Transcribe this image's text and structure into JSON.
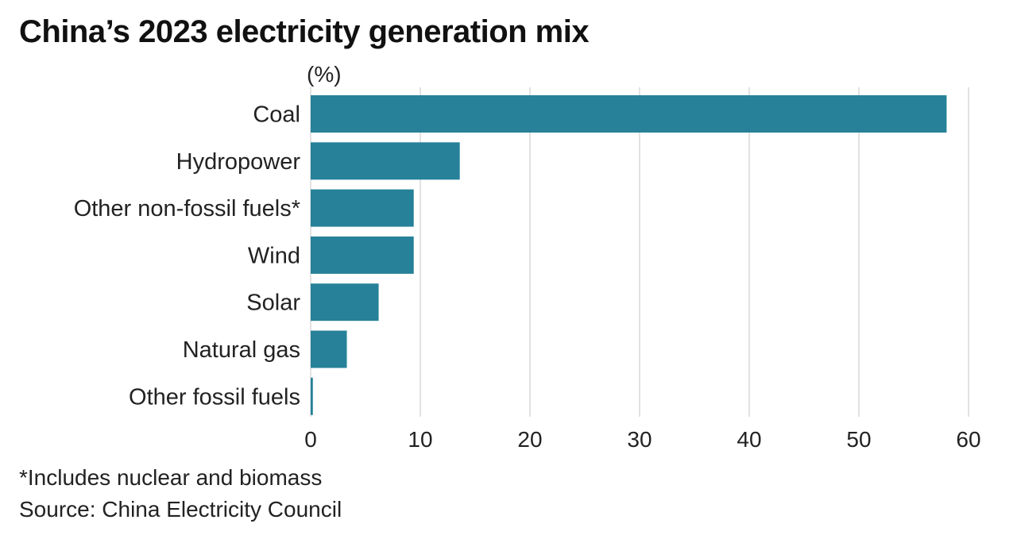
{
  "title": "China’s 2023 electricity generation mix",
  "unit_label": "(%)",
  "footnote": "*Includes nuclear and biomass",
  "source": "Source: China Electricity Council",
  "colors": {
    "bar": "#268199",
    "grid": "#d9d9d9"
  },
  "chart_data": {
    "type": "bar",
    "orientation": "horizontal",
    "title": "China’s 2023 electricity generation mix",
    "xlabel": "(%)",
    "ylabel": "",
    "categories": [
      "Coal",
      "Hydropower",
      "Other non-fossil fuels*",
      "Wind",
      "Solar",
      "Natural gas",
      "Other fossil fuels"
    ],
    "values": [
      58.0,
      13.6,
      9.4,
      9.4,
      6.2,
      3.3,
      0.2
    ],
    "xlim": [
      0,
      60
    ],
    "xticks": [
      "0",
      "10",
      "20",
      "30",
      "40",
      "50",
      "60"
    ],
    "grid": true
  }
}
